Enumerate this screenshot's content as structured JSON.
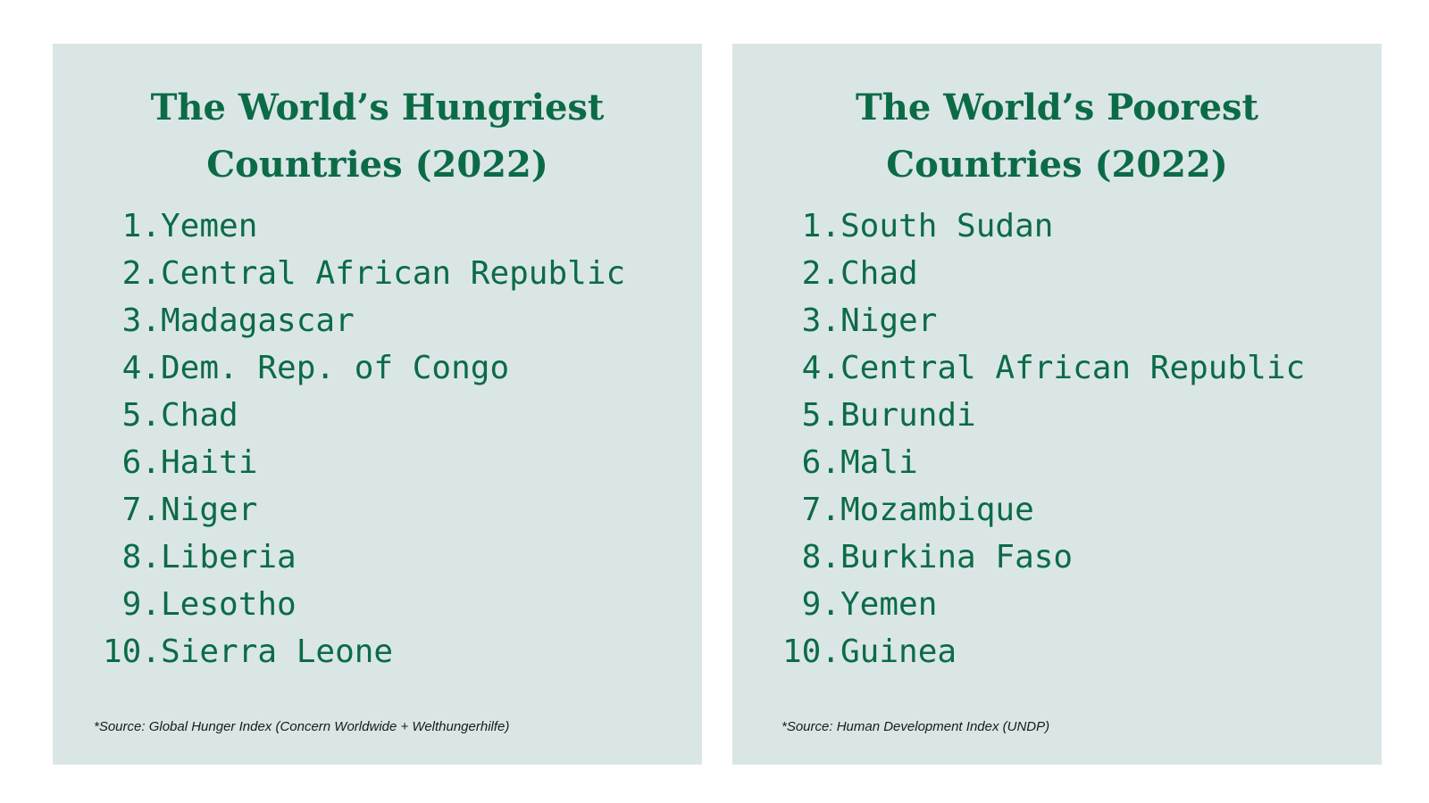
{
  "hungriest": {
    "title_line1": "The World’s Hungriest",
    "title_line2": "Countries (2022)",
    "items": [
      {
        "rank": "1.",
        "name": "Yemen"
      },
      {
        "rank": "2.",
        "name": "Central African Republic"
      },
      {
        "rank": "3.",
        "name": "Madagascar"
      },
      {
        "rank": "4.",
        "name": "Dem. Rep. of Congo"
      },
      {
        "rank": "5.",
        "name": "Chad"
      },
      {
        "rank": "6.",
        "name": "Haiti"
      },
      {
        "rank": "7.",
        "name": "Niger"
      },
      {
        "rank": "8.",
        "name": "Liberia"
      },
      {
        "rank": "9.",
        "name": "Lesotho"
      },
      {
        "rank": "10.",
        "name": "Sierra Leone"
      }
    ],
    "source": "*Source: Global Hunger Index (Concern Worldwide + Welthungerhilfe)"
  },
  "poorest": {
    "title_line1": "The World’s Poorest",
    "title_line2": "Countries (2022)",
    "items": [
      {
        "rank": "1.",
        "name": "South Sudan"
      },
      {
        "rank": "2.",
        "name": "Chad"
      },
      {
        "rank": "3.",
        "name": "Niger"
      },
      {
        "rank": "4.",
        "name": "Central African Republic"
      },
      {
        "rank": "5.",
        "name": "Burundi"
      },
      {
        "rank": "6.",
        "name": "Mali"
      },
      {
        "rank": "7.",
        "name": "Mozambique"
      },
      {
        "rank": "8.",
        "name": "Burkina Faso"
      },
      {
        "rank": "9.",
        "name": "Yemen"
      },
      {
        "rank": "10.",
        "name": "Guinea"
      }
    ],
    "source": "*Source: Human Development Index (UNDP)"
  },
  "colors": {
    "panel_background": "#dae6e6",
    "accent_green": "#0c6b47",
    "source_text": "#1a1a1a"
  }
}
